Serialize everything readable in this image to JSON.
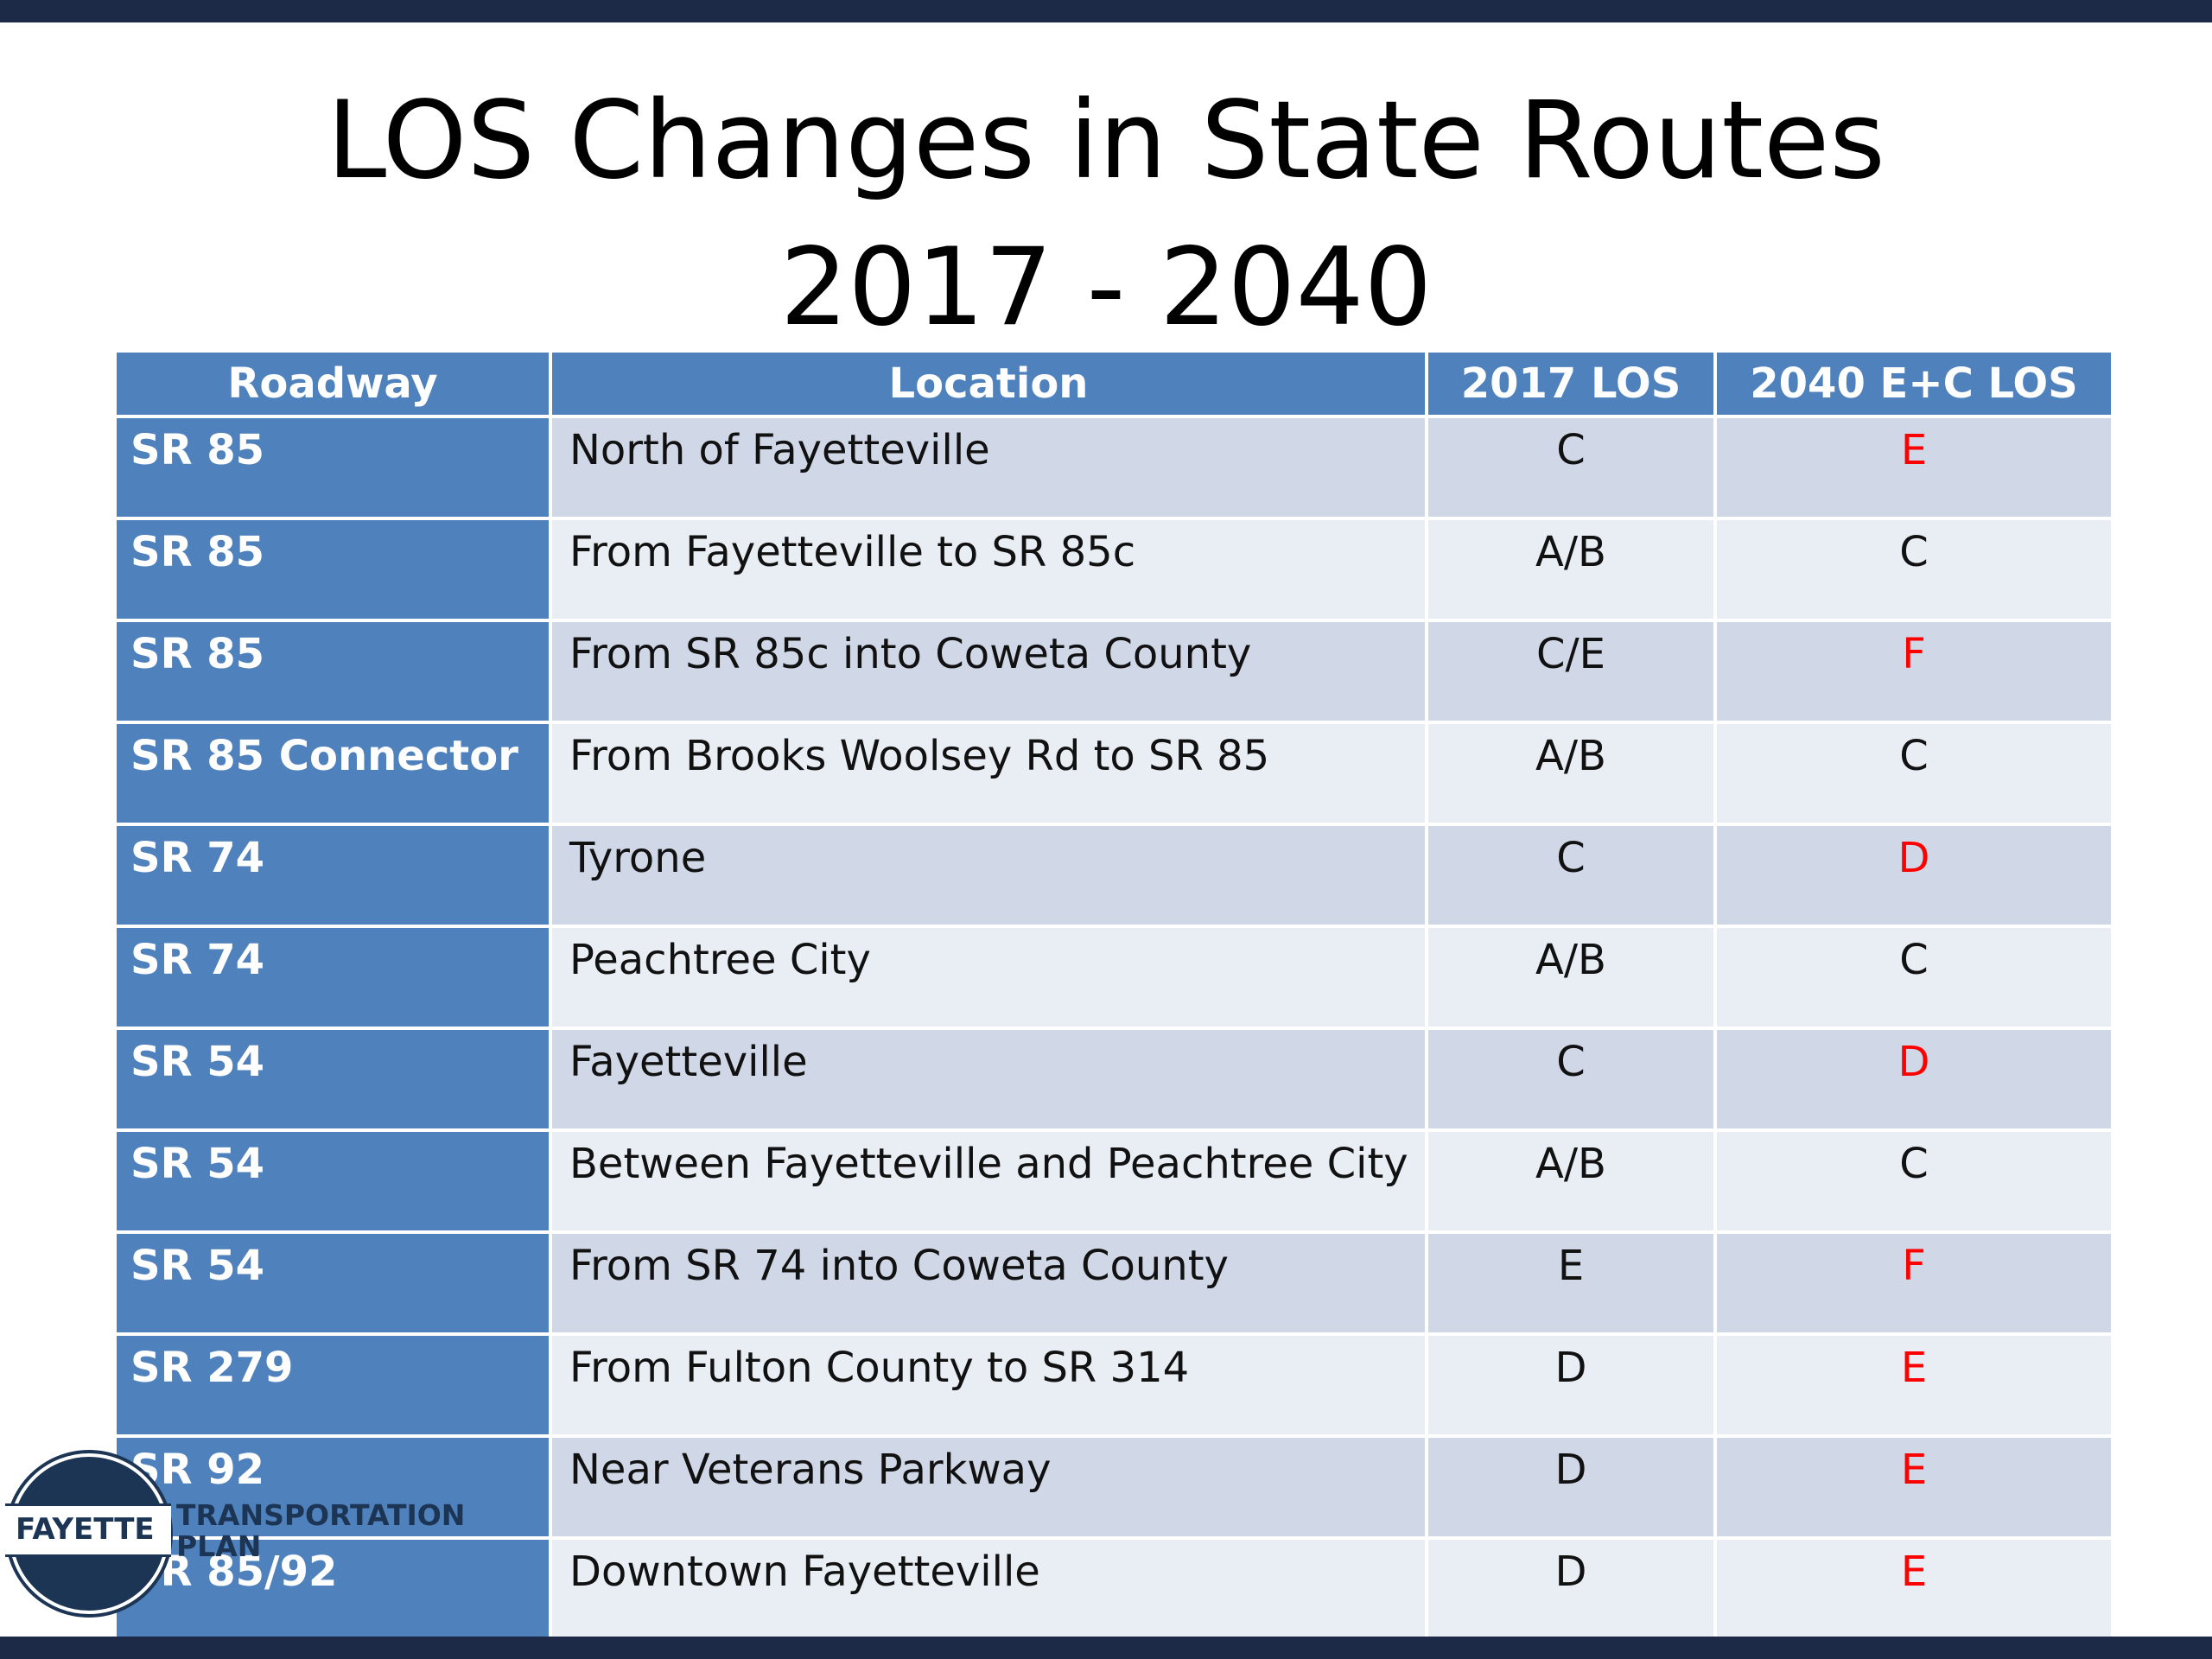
{
  "title": {
    "line1": "LOS Changes in State Routes",
    "line2": "2017 - 2040"
  },
  "table": {
    "headers": [
      "Roadway",
      "Location",
      "2017 LOS",
      "2040 E+C LOS"
    ],
    "rows": [
      {
        "roadway": "SR 85",
        "location": "North of Fayetteville",
        "los_2017": "C",
        "los_2040": "E"
      },
      {
        "roadway": "SR 85",
        "location": "From Fayetteville to SR 85c",
        "los_2017": "A/B",
        "los_2040": "C"
      },
      {
        "roadway": "SR 85",
        "location": "From SR 85c into Coweta County",
        "los_2017": "C/E",
        "los_2040": "F"
      },
      {
        "roadway": "SR 85 Connector",
        "location": "From Brooks Woolsey Rd to SR 85",
        "los_2017": "A/B",
        "los_2040": "C"
      },
      {
        "roadway": "SR 74",
        "location": "Tyrone",
        "los_2017": "C",
        "los_2040": "D"
      },
      {
        "roadway": "SR 74",
        "location": "Peachtree City",
        "los_2017": "A/B",
        "los_2040": "C"
      },
      {
        "roadway": "SR 54",
        "location": "Fayetteville",
        "los_2017": "C",
        "los_2040": "D"
      },
      {
        "roadway": "SR 54",
        "location": "Between Fayetteville and Peachtree City",
        "los_2017": "A/B",
        "los_2040": "C"
      },
      {
        "roadway": "SR 54",
        "location": "From SR 74 into Coweta County",
        "los_2017": "E",
        "los_2040": "F"
      },
      {
        "roadway": "SR 279",
        "location": "From Fulton County to SR 314",
        "los_2017": "D",
        "los_2040": "E"
      },
      {
        "roadway": "SR 92",
        "location": "Near Veterans Parkway",
        "los_2017": "D",
        "los_2040": "E"
      },
      {
        "roadway": "SR 85/92",
        "location": "Downtown Fayetteville",
        "los_2017": "D",
        "los_2040": "E"
      }
    ]
  },
  "logo": {
    "word": "FAYETTE",
    "line1": "TRANSPORTATION",
    "line2": "PLAN"
  },
  "colors": {
    "header_blue": "#4f81bd",
    "rule_navy": "#1c2a48",
    "worse_red": "#ff0000"
  }
}
